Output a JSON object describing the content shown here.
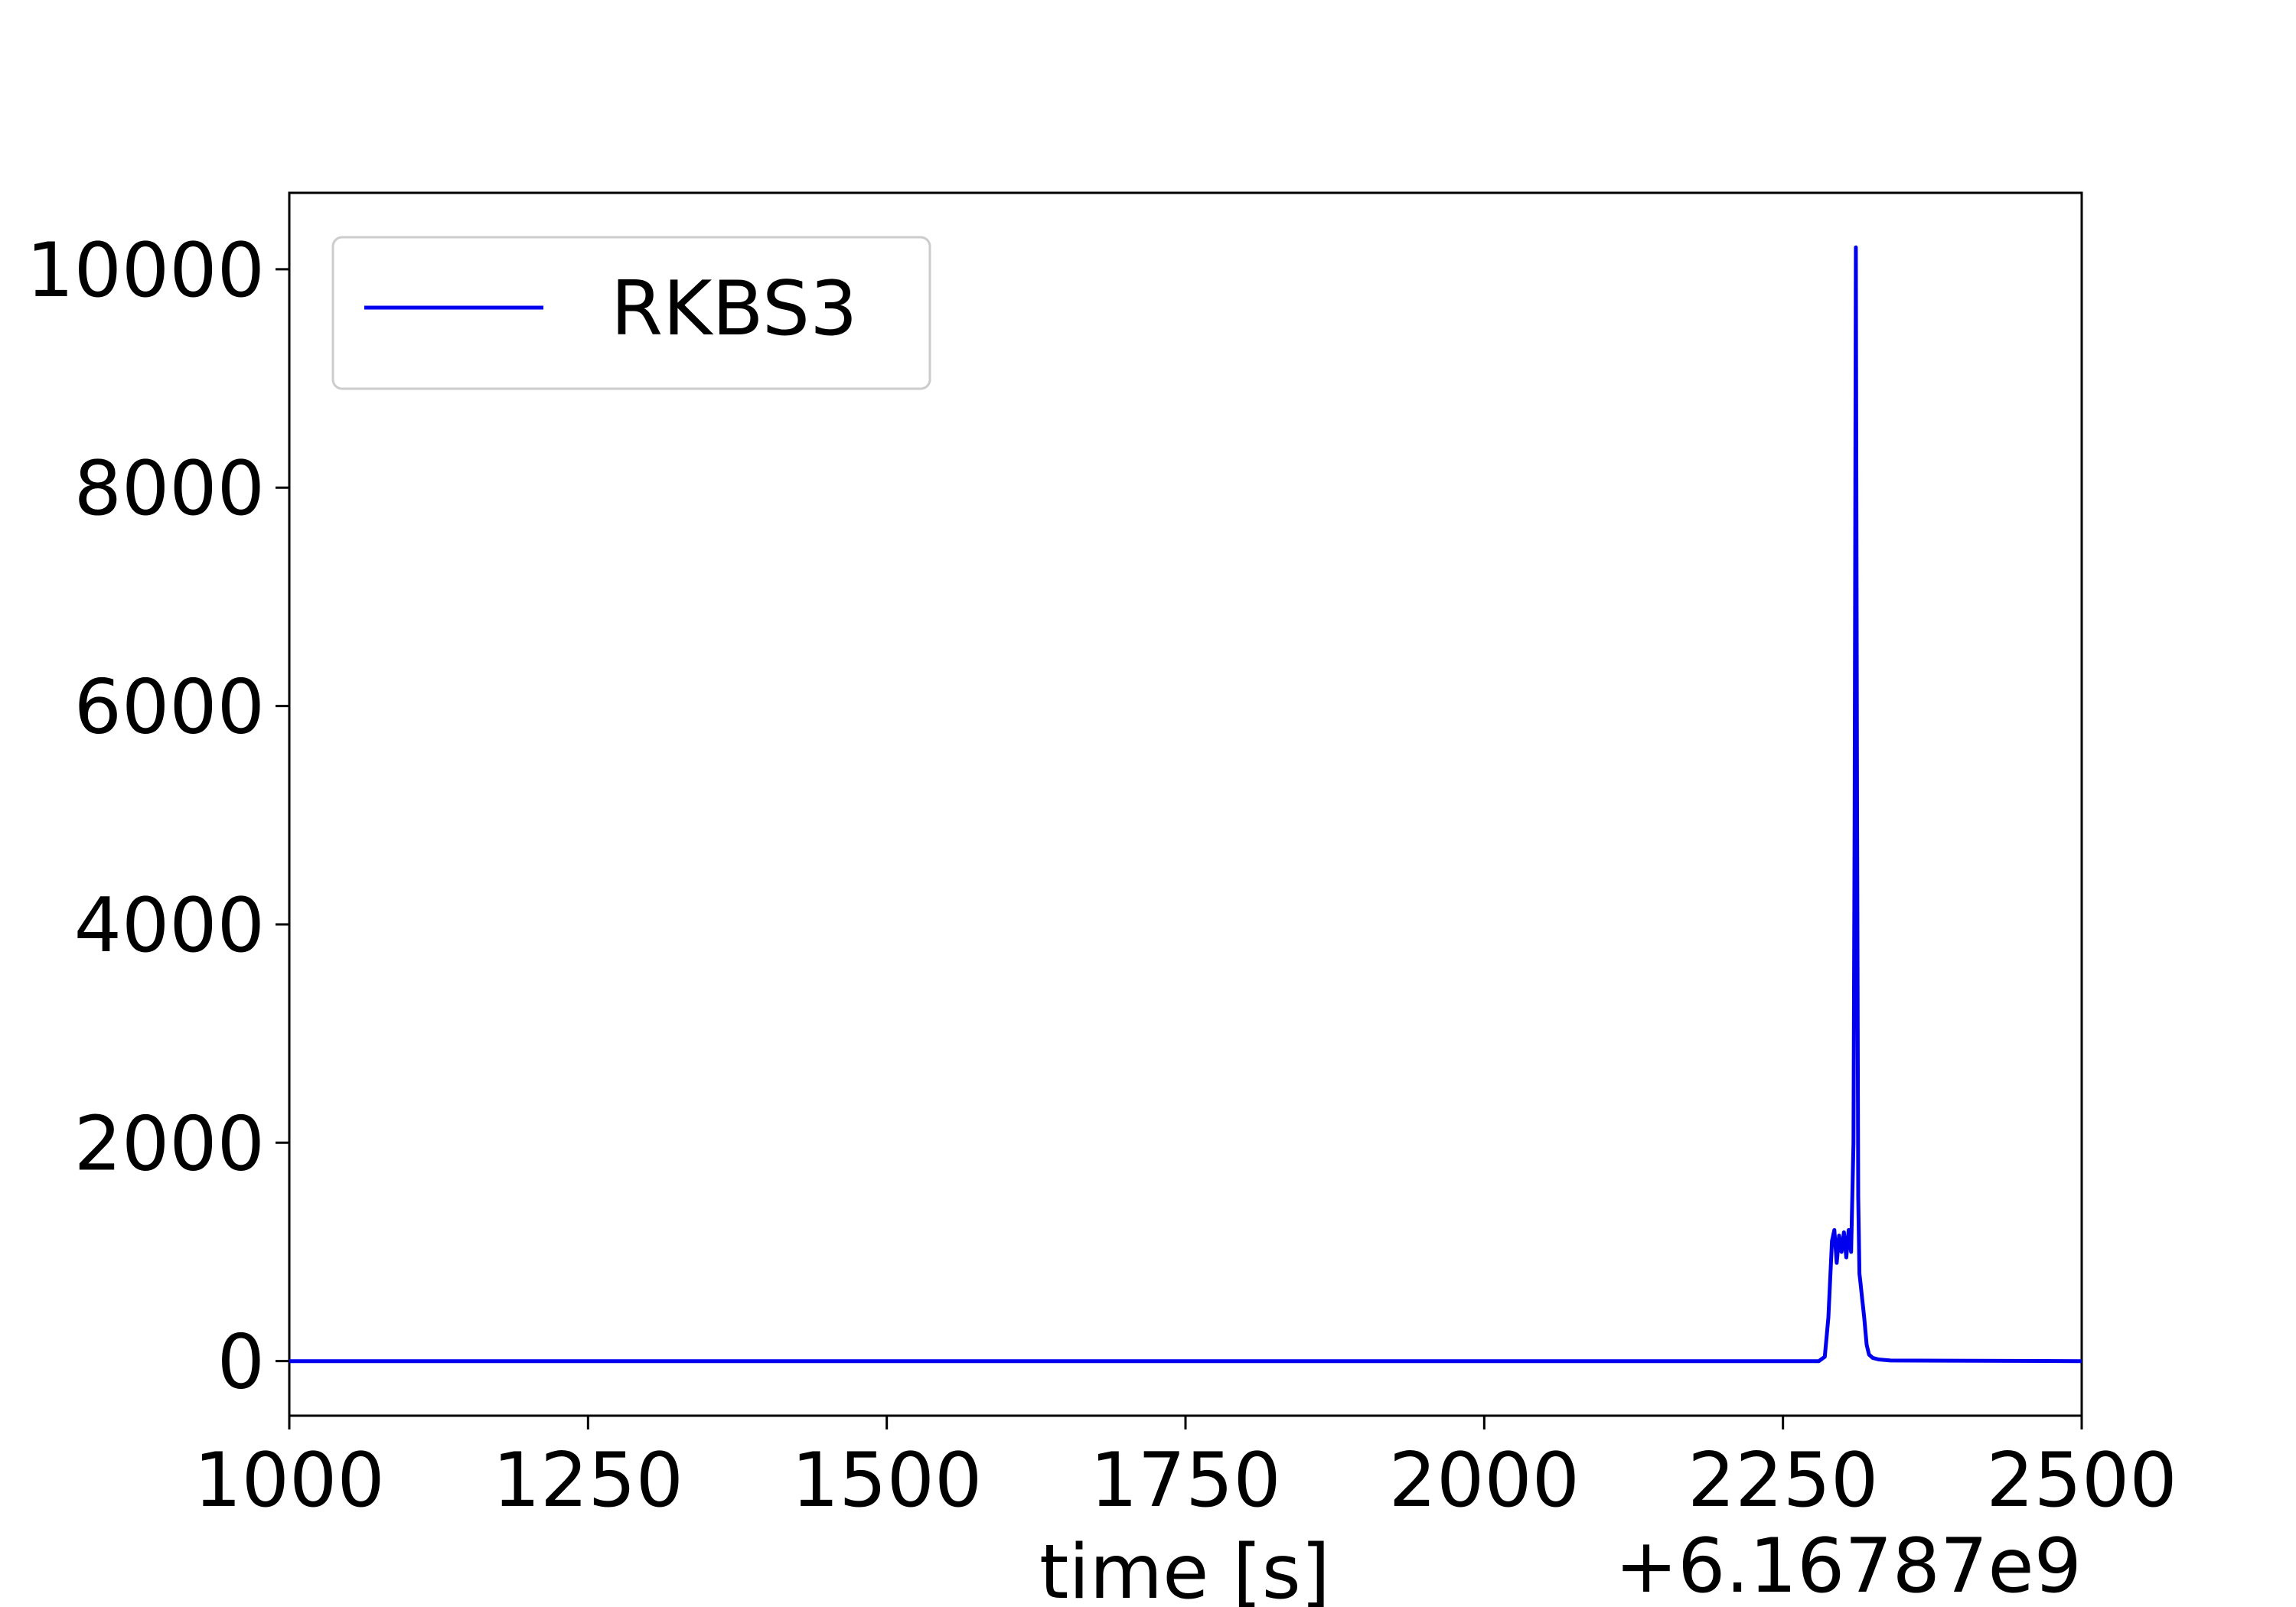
{
  "chart_data": {
    "type": "line",
    "title": "",
    "xlabel": "time [s]",
    "ylabel": "",
    "x_offset_label": "+6.16787e9",
    "xlim": [
      1000,
      2500
    ],
    "ylim": [
      -500,
      10700
    ],
    "xticks": [
      1000,
      1250,
      1500,
      1750,
      2000,
      2250,
      2500
    ],
    "xtick_labels": [
      "1000",
      "1250",
      "1500",
      "1750",
      "2000",
      "2250",
      "2500"
    ],
    "yticks": [
      0,
      2000,
      4000,
      6000,
      8000,
      10000
    ],
    "ytick_labels": [
      "0",
      "2000",
      "4000",
      "6000",
      "8000",
      "10000"
    ],
    "grid": false,
    "legend_position": "upper-left",
    "series": [
      {
        "name": "RKBS3",
        "color": "#0000ee",
        "x": [
          1000,
          2280,
          2285,
          2288,
          2291,
          2293,
          2295,
          2297,
          2299,
          2301,
          2303,
          2305,
          2307,
          2309,
          2310,
          2311,
          2312,
          2313,
          2314,
          2315,
          2316,
          2318,
          2320,
          2322,
          2325,
          2330,
          2340,
          2500
        ],
        "y": [
          0,
          0,
          40,
          400,
          1100,
          1200,
          900,
          1150,
          1000,
          1180,
          950,
          1200,
          1000,
          2000,
          5000,
          10200,
          5000,
          1500,
          800,
          700,
          600,
          400,
          150,
          60,
          30,
          15,
          5,
          0
        ]
      }
    ]
  }
}
